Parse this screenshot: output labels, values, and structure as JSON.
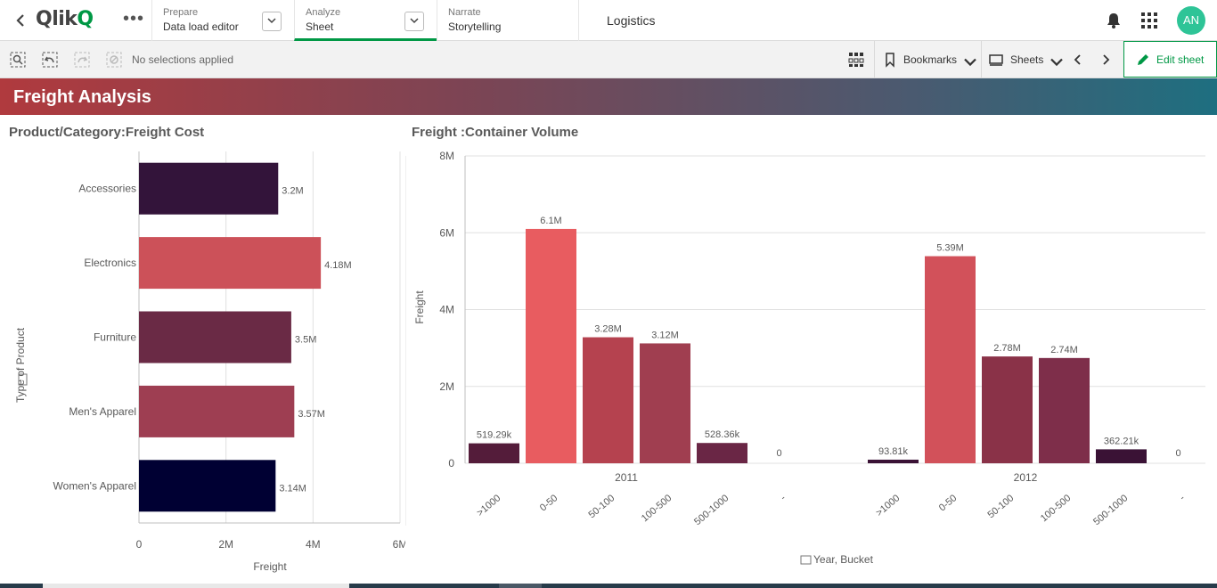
{
  "topbar": {
    "logo_text": "Qlik",
    "logo_q": "Q",
    "more_icon": "more-horizontal-icon",
    "prepare": {
      "small": "Prepare",
      "big": "Data load editor"
    },
    "analyze": {
      "small": "Analyze",
      "big": "Sheet"
    },
    "narrate": {
      "small": "Narrate",
      "big": "Storytelling"
    },
    "app_title": "Logistics",
    "avatar_initials": "AN",
    "accent_color": "#009845"
  },
  "toolbar": {
    "selection_status": "No selections applied",
    "bookmarks_label": "Bookmarks",
    "sheets_label": "Sheets",
    "edit_label": "Edit sheet"
  },
  "sheet": {
    "title": "Freight Analysis"
  },
  "chart_data": [
    {
      "type": "bar",
      "orientation": "horizontal",
      "title": "Product/Category:Freight Cost",
      "xlabel": "Freight",
      "ylabel": "Type of Product",
      "categories": [
        "Accessories",
        "Electronics",
        "Furniture",
        "Men's Apparel",
        "Women's Apparel"
      ],
      "values": [
        3200000,
        4180000,
        3500000,
        3570000,
        3140000
      ],
      "value_labels": [
        "3.2M",
        "4.18M",
        "3.5M",
        "3.57M",
        "3.14M"
      ],
      "colors": [
        "#33143a",
        "#cc5159",
        "#6a2a45",
        "#9e3e52",
        "#000033"
      ],
      "xlim": [
        0,
        6000000
      ],
      "xticks": [
        "0",
        "2M",
        "4M",
        "6M"
      ],
      "grid": true
    },
    {
      "type": "bar",
      "title": "Freight :Container Volume",
      "xlabel": "Year, Bucket",
      "ylabel": "Freight",
      "ylim": [
        0,
        8000000
      ],
      "yticks": [
        "0",
        "2M",
        "4M",
        "6M",
        "8M"
      ],
      "grid": true,
      "groups": [
        {
          "name": "2011",
          "categories": [
            ">1000",
            "0-50",
            "50-100",
            "100-500",
            "500-1000",
            "-"
          ],
          "values": [
            519290,
            6100000,
            3280000,
            3120000,
            528360,
            0
          ],
          "value_labels": [
            "519.29k",
            "6.1M",
            "3.28M",
            "3.12M",
            "528.36k",
            "0"
          ],
          "colors": [
            "#541c3a",
            "#e85c60",
            "#b5424f",
            "#a03e50",
            "#6a2645",
            "#6a2645"
          ]
        },
        {
          "name": "2012",
          "categories": [
            ">1000",
            "0-50",
            "50-100",
            "100-500",
            "500-1000",
            "-"
          ],
          "values": [
            93810,
            5390000,
            2780000,
            2740000,
            362210,
            0
          ],
          "value_labels": [
            "93.81k",
            "5.39M",
            "2.78M",
            "2.74M",
            "362.21k",
            "0"
          ],
          "colors": [
            "#3a1235",
            "#d2515a",
            "#8a3248",
            "#7e2e4a",
            "#3a1235",
            "#3a1235"
          ]
        }
      ]
    }
  ]
}
